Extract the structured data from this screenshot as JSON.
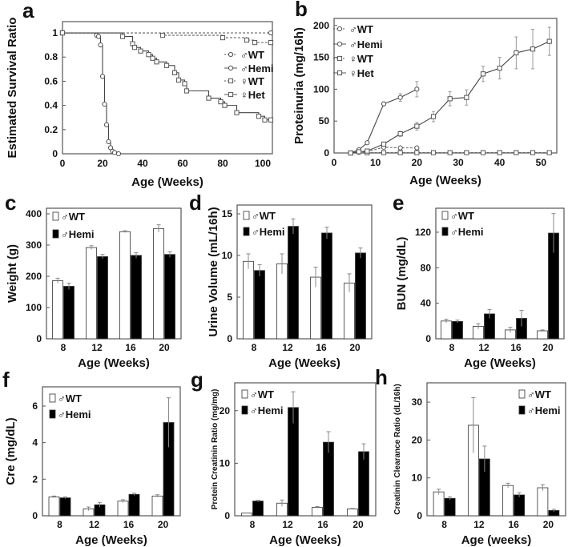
{
  "chart_data": [
    {
      "panel": "a",
      "type": "line",
      "step": true,
      "xlabel": "Age (Weeks)",
      "ylabel": "Estimated Survival Ratio",
      "xlim": [
        0,
        104.8
      ],
      "ylim": [
        0,
        1.093
      ],
      "xticks": [
        0,
        20,
        40,
        60,
        80,
        100
      ],
      "yticks": [
        0,
        0.2,
        0.4,
        0.6,
        0.8,
        1
      ],
      "legend_position": "right-middle",
      "series": [
        {
          "name": "♂WT",
          "marker": "circle",
          "dash": true,
          "x": [
            0,
            104
          ],
          "y": [
            1,
            1
          ]
        },
        {
          "name": "♂Hemi",
          "marker": "circle",
          "dash": false,
          "x": [
            0,
            17,
            18,
            19,
            20,
            21,
            22,
            23,
            24,
            25,
            26,
            28
          ],
          "y": [
            1,
            0.98,
            0.97,
            0.9,
            0.64,
            0.41,
            0.24,
            0.1,
            0.05,
            0.02,
            0.01,
            0
          ]
        },
        {
          "name": "♀WT",
          "marker": "square",
          "dash": true,
          "x": [
            0,
            50,
            80,
            92,
            96,
            104
          ],
          "y": [
            1,
            0.98,
            0.96,
            0.94,
            0.92,
            0.92
          ]
        },
        {
          "name": "♀Het",
          "marker": "square",
          "dash": false,
          "x": [
            0,
            30,
            35,
            36,
            39,
            43,
            45,
            47,
            52,
            56,
            58,
            61,
            62,
            73,
            79,
            81,
            87,
            98,
            101,
            104
          ],
          "y": [
            1,
            0.97,
            0.91,
            0.88,
            0.85,
            0.82,
            0.79,
            0.76,
            0.73,
            0.67,
            0.61,
            0.58,
            0.52,
            0.46,
            0.43,
            0.4,
            0.34,
            0.31,
            0.28,
            0.28
          ]
        }
      ]
    },
    {
      "panel": "b",
      "type": "line",
      "xlabel": "Age (Weeks)",
      "ylabel": "Proteinuria (mg/16h)",
      "xlim": [
        0,
        53.8
      ],
      "ylim": [
        0,
        211
      ],
      "xticks": [
        0,
        10,
        20,
        30,
        40,
        50
      ],
      "yticks": [
        0,
        50,
        100,
        150,
        200
      ],
      "legend_position": "top-left",
      "series": [
        {
          "name": "♂WT",
          "marker": "circle",
          "dash": true,
          "x": [
            4,
            6,
            8,
            12,
            16,
            20
          ],
          "y": [
            0,
            1,
            2,
            9,
            8,
            8
          ],
          "err": [
            0,
            0,
            0,
            1,
            1,
            1
          ]
        },
        {
          "name": "♂Hemi",
          "marker": "circle",
          "dash": false,
          "x": [
            4,
            6,
            8,
            12,
            16,
            20
          ],
          "y": [
            0,
            5,
            16,
            77,
            87,
            100
          ],
          "err": [
            0,
            1,
            2,
            3,
            6,
            12
          ]
        },
        {
          "name": "♀WT",
          "marker": "square",
          "dash": true,
          "x": [
            4,
            8,
            12,
            16,
            20,
            24,
            28,
            32,
            36,
            40,
            44,
            48,
            52
          ],
          "y": [
            0,
            0.5,
            0.5,
            0.5,
            0.5,
            0.5,
            0.5,
            0.5,
            0.5,
            0.5,
            0.5,
            0.5,
            0.5
          ],
          "err": [
            0,
            0,
            0,
            0,
            0,
            0,
            0,
            0,
            0,
            0,
            0,
            0,
            0
          ]
        },
        {
          "name": "♀Het",
          "marker": "square",
          "dash": false,
          "x": [
            4,
            6,
            8,
            12,
            16,
            20,
            24,
            28,
            32,
            36,
            40,
            44,
            48,
            52
          ],
          "y": [
            0,
            2,
            3,
            14,
            30,
            42,
            57,
            85,
            87,
            124,
            133,
            157,
            163,
            175
          ],
          "err": [
            0,
            0,
            1,
            2,
            4,
            6,
            8,
            11,
            12,
            12,
            17,
            25,
            31,
            22
          ]
        }
      ]
    },
    {
      "panel": "c",
      "type": "bar",
      "xlabel": "Age (Weeks)",
      "ylabel": "Weight (g)",
      "categories": [
        "8",
        "12",
        "16",
        "20"
      ],
      "ylim": [
        0,
        418
      ],
      "yticks": [
        0,
        100,
        200,
        300,
        400
      ],
      "legend_position": "top-left",
      "series": [
        {
          "name": "♂WT",
          "fill": "#ffffff",
          "values": [
            186,
            292,
            343,
            353
          ],
          "err": [
            8,
            6,
            3,
            12
          ]
        },
        {
          "name": "♂Hemi",
          "fill": "#000000",
          "values": [
            168,
            263,
            267,
            270
          ],
          "err": [
            10,
            7,
            9,
            9
          ]
        }
      ]
    },
    {
      "panel": "d",
      "type": "bar",
      "xlabel": "Age (Weeks)",
      "ylabel": "Urine Volume (mL/16h)",
      "categories": [
        "8",
        "12",
        "16",
        "20"
      ],
      "ylim": [
        0,
        16.06
      ],
      "yticks": [
        0,
        5,
        10,
        15
      ],
      "legend_position": "top-left",
      "series": [
        {
          "name": "♂WT",
          "fill": "#ffffff",
          "values": [
            9.3,
            9.0,
            7.4,
            6.7
          ],
          "err": [
            0.9,
            1.2,
            1.2,
            1.1
          ]
        },
        {
          "name": "♂Hemi",
          "fill": "#000000",
          "values": [
            8.2,
            13.5,
            12.7,
            10.3
          ],
          "err": [
            0.7,
            0.9,
            0.7,
            0.6
          ]
        }
      ]
    },
    {
      "panel": "e",
      "type": "bar",
      "xlabel": "Age (Weeks)",
      "ylabel": "BUN (mg/dL)",
      "categories": [
        "8",
        "12",
        "16",
        "20"
      ],
      "ylim": [
        0,
        147
      ],
      "yticks": [
        0,
        40,
        80,
        120
      ],
      "legend_position": "top-left",
      "series": [
        {
          "name": "♂WT",
          "fill": "#ffffff",
          "values": [
            20,
            14,
            10,
            9
          ],
          "err": [
            2,
            3,
            3,
            1
          ]
        },
        {
          "name": "♂Hemi",
          "fill": "#000000",
          "values": [
            19.5,
            28,
            23,
            119
          ],
          "err": [
            1.5,
            5,
            9,
            22
          ]
        }
      ]
    },
    {
      "panel": "f",
      "type": "bar",
      "xlabel": "Age (Weeks)",
      "ylabel": "Cre (mg/dL)",
      "categories": [
        "8",
        "12",
        "16",
        "20"
      ],
      "ylim": [
        0,
        7.05
      ],
      "yticks": [
        0,
        2,
        4,
        6
      ],
      "legend_position": "top-left",
      "series": [
        {
          "name": "♂WT",
          "fill": "#ffffff",
          "values": [
            1.03,
            0.38,
            0.8,
            1.08
          ],
          "err": [
            0.05,
            0.1,
            0.08,
            0.07
          ]
        },
        {
          "name": "♂Hemi",
          "fill": "#000000",
          "values": [
            0.98,
            0.6,
            1.17,
            5.1
          ],
          "err": [
            0.05,
            0.13,
            0.06,
            1.35
          ]
        }
      ]
    },
    {
      "panel": "g",
      "type": "bar",
      "xlabel": "Age (Weeks)",
      "ylabel": "Protein Creatinin Ratio (mg/mg)",
      "categories": [
        "8",
        "12",
        "16",
        "20"
      ],
      "ylim": [
        0,
        25.3
      ],
      "yticks": [
        0,
        10,
        20
      ],
      "legend_position": "top-left",
      "series": [
        {
          "name": "♂WT",
          "fill": "#ffffff",
          "values": [
            0.5,
            2.4,
            1.6,
            1.3
          ],
          "err": [
            0.05,
            0.6,
            0.15,
            0.1
          ]
        },
        {
          "name": "♂Hemi",
          "fill": "#000000",
          "values": [
            2.8,
            20.6,
            14.0,
            12.2
          ],
          "err": [
            0.15,
            3,
            2,
            1.5
          ]
        }
      ]
    },
    {
      "panel": "h",
      "type": "bar",
      "xlabel": "Age (weeks)",
      "ylabel": "Creatinin Clearance Ratio  (dL/16h)",
      "categories": [
        "8",
        "12",
        "16",
        "20"
      ],
      "ylim": [
        0,
        35.1
      ],
      "yticks": [
        0,
        10,
        20,
        30
      ],
      "legend_position": "top-right",
      "series": [
        {
          "name": "♂WT",
          "fill": "#ffffff",
          "values": [
            6.3,
            23.9,
            8.0,
            7.4
          ],
          "err": [
            0.7,
            7.3,
            0.6,
            0.8
          ]
        },
        {
          "name": "♂Hemi",
          "fill": "#000000",
          "values": [
            4.6,
            15.0,
            5.5,
            1.4
          ],
          "err": [
            0.4,
            3.4,
            0.6,
            0.3
          ]
        }
      ]
    }
  ]
}
